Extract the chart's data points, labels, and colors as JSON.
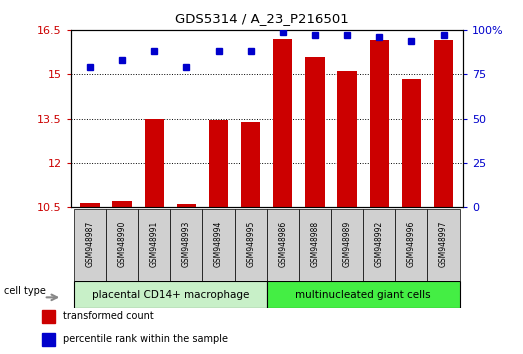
{
  "title": "GDS5314 / A_23_P216501",
  "categories": [
    "GSM948987",
    "GSM948990",
    "GSM948991",
    "GSM948993",
    "GSM948994",
    "GSM948995",
    "GSM948986",
    "GSM948988",
    "GSM948989",
    "GSM948992",
    "GSM948996",
    "GSM948997"
  ],
  "bar_values": [
    10.65,
    10.7,
    13.47,
    10.6,
    13.45,
    13.4,
    16.2,
    15.6,
    15.1,
    16.15,
    14.85,
    16.15
  ],
  "dot_values": [
    79,
    83,
    88,
    79,
    88,
    88,
    99,
    97,
    97,
    96,
    94,
    97
  ],
  "group1_label": "placental CD14+ macrophage",
  "group2_label": "multinucleated giant cells",
  "group1_count": 6,
  "group2_count": 6,
  "ylim_left": [
    10.5,
    16.5
  ],
  "ylim_right": [
    0,
    100
  ],
  "yticks_left": [
    10.5,
    12,
    13.5,
    15,
    16.5
  ],
  "ytick_labels_left": [
    "10.5",
    "12",
    "13.5",
    "15",
    "16.5"
  ],
  "yticks_right": [
    0,
    25,
    50,
    75,
    100
  ],
  "ytick_labels_right": [
    "0",
    "25",
    "50",
    "75",
    "100%"
  ],
  "bar_color": "#cc0000",
  "dot_color": "#0000cc",
  "group1_bg": "#c8f0c8",
  "group2_bg": "#44ee44",
  "label_box_color": "#d0d0d0",
  "bar_width": 0.6,
  "legend_red_label": "transformed count",
  "legend_blue_label": "percentile rank within the sample",
  "cell_type_label": "cell type"
}
